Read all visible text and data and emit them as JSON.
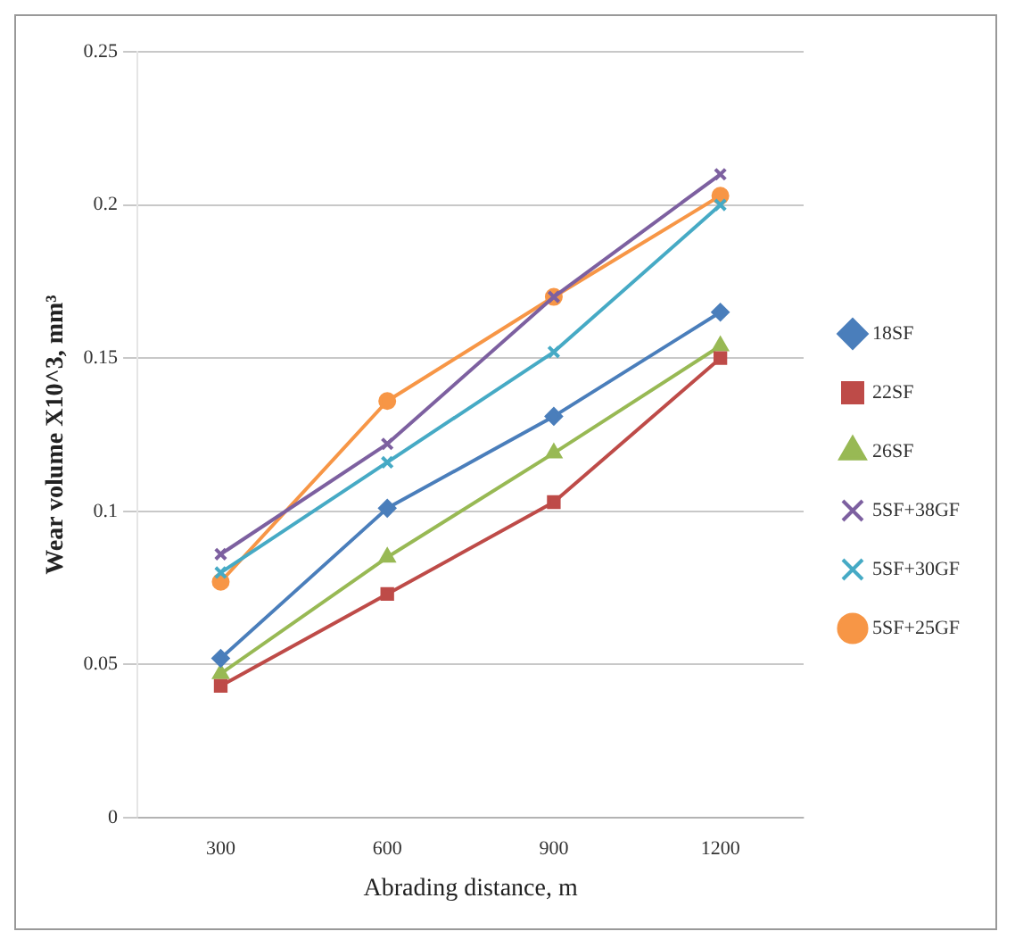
{
  "chart_data": {
    "type": "line",
    "xlabel": "Abrading distance, m",
    "ylabel": "Wear volume X10^3, mm³",
    "categories": [
      "300",
      "600",
      "900",
      "1200"
    ],
    "ylim": [
      0,
      0.25
    ],
    "yticks": [
      {
        "value": 0,
        "label": "0"
      },
      0.05,
      0.1,
      0.15,
      0.2,
      0.25
    ],
    "grid": "y",
    "legend": "right",
    "series": [
      {
        "name": "18SF",
        "color": "#4a7ebb",
        "marker": "diamond",
        "values": [
          0.052,
          0.101,
          0.131,
          0.165
        ]
      },
      {
        "name": "22SF",
        "color": "#be4b48",
        "marker": "square",
        "values": [
          0.043,
          0.073,
          0.103,
          0.15
        ]
      },
      {
        "name": "26SF",
        "color": "#98b954",
        "marker": "triangle",
        "values": [
          0.047,
          0.085,
          0.119,
          0.154
        ]
      },
      {
        "name": "5SF+38GF",
        "color": "#7d60a0",
        "marker": "cross",
        "values": [
          0.086,
          0.122,
          0.17,
          0.21
        ]
      },
      {
        "name": "5SF+30GF",
        "color": "#46aac5",
        "marker": "cross",
        "values": [
          0.08,
          0.116,
          0.152,
          0.2
        ]
      },
      {
        "name": "5SF+25GF",
        "color": "#f79646",
        "marker": "circle",
        "values": [
          0.077,
          0.136,
          0.17,
          0.203
        ]
      }
    ]
  }
}
